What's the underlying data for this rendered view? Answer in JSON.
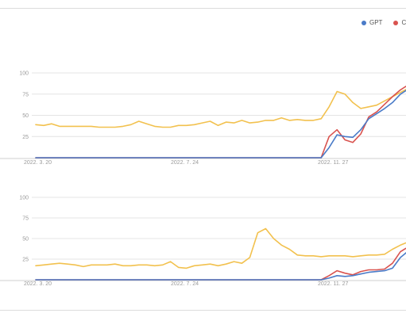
{
  "legend": {
    "items": [
      {
        "label": "GPT",
        "color": "#4a7bc8"
      },
      {
        "label": "C",
        "color": "#d9534f"
      }
    ]
  },
  "chart_data": [
    {
      "type": "line",
      "ylim": [
        0,
        100
      ],
      "y_ticks": [
        "25",
        "50",
        "75",
        "100"
      ],
      "x_tick_labels": [
        "2022. 3. 20",
        "2022. 7. 24",
        "2022. 11. 27"
      ],
      "grid": true,
      "series": [
        {
          "color": "#f2c14e",
          "values": [
            39,
            38,
            40,
            37,
            37,
            37,
            37,
            37,
            36,
            36,
            36,
            37,
            39,
            43,
            40,
            37,
            36,
            36,
            38,
            38,
            39,
            41,
            43,
            38,
            42,
            41,
            44,
            41,
            42,
            44,
            44,
            47,
            44,
            45,
            44,
            44,
            46,
            60,
            78,
            75,
            65,
            58,
            60,
            62,
            67,
            72,
            77,
            82
          ]
        },
        {
          "color": "#d9534f",
          "values": [
            0,
            0,
            0,
            0,
            0,
            0,
            0,
            0,
            0,
            0,
            0,
            0,
            0,
            0,
            0,
            0,
            0,
            0,
            0,
            0,
            0,
            0,
            0,
            0,
            0,
            0,
            0,
            0,
            0,
            0,
            0,
            0,
            0,
            0,
            0,
            0,
            0,
            25,
            33,
            21,
            18,
            28,
            48,
            54,
            63,
            72,
            80,
            86
          ]
        },
        {
          "color": "#4a7bc8",
          "values": [
            0,
            0,
            0,
            0,
            0,
            0,
            0,
            0,
            0,
            0,
            0,
            0,
            0,
            0,
            0,
            0,
            0,
            0,
            0,
            0,
            0,
            0,
            0,
            0,
            0,
            0,
            0,
            0,
            0,
            0,
            0,
            0,
            0,
            0,
            0,
            0,
            0,
            12,
            27,
            25,
            24,
            33,
            46,
            52,
            58,
            65,
            75,
            81
          ]
        }
      ]
    },
    {
      "type": "line",
      "ylim": [
        0,
        100
      ],
      "y_ticks": [
        "25",
        "50",
        "75",
        "100"
      ],
      "x_tick_labels": [
        "2022. 3. 20",
        "2022. 7. 24",
        "2022. 11. 27"
      ],
      "grid": true,
      "series": [
        {
          "color": "#f2c14e",
          "values": [
            17,
            18,
            19,
            20,
            19,
            18,
            16,
            18,
            18,
            18,
            19,
            17,
            17,
            18,
            18,
            17,
            18,
            22,
            15,
            14,
            17,
            18,
            19,
            17,
            19,
            22,
            20,
            27,
            57,
            62,
            50,
            42,
            37,
            30,
            29,
            29,
            28,
            29,
            29,
            29,
            28,
            29,
            30,
            30,
            31,
            37,
            42,
            46
          ]
        },
        {
          "color": "#d9534f",
          "values": [
            0,
            0,
            0,
            0,
            0,
            0,
            0,
            0,
            0,
            0,
            0,
            0,
            0,
            0,
            0,
            0,
            0,
            0,
            0,
            0,
            0,
            0,
            0,
            0,
            0,
            0,
            0,
            0,
            0,
            0,
            0,
            0,
            0,
            0,
            0,
            0,
            0,
            5,
            11,
            8,
            6,
            10,
            12,
            12,
            13,
            20,
            34,
            40
          ]
        },
        {
          "color": "#4a7bc8",
          "values": [
            0,
            0,
            0,
            0,
            0,
            0,
            0,
            0,
            0,
            0,
            0,
            0,
            0,
            0,
            0,
            0,
            0,
            0,
            0,
            0,
            0,
            0,
            0,
            0,
            0,
            0,
            0,
            0,
            0,
            0,
            0,
            0,
            0,
            0,
            0,
            0,
            0,
            2,
            5,
            4,
            5,
            7,
            9,
            10,
            11,
            14,
            27,
            35
          ]
        }
      ]
    }
  ]
}
